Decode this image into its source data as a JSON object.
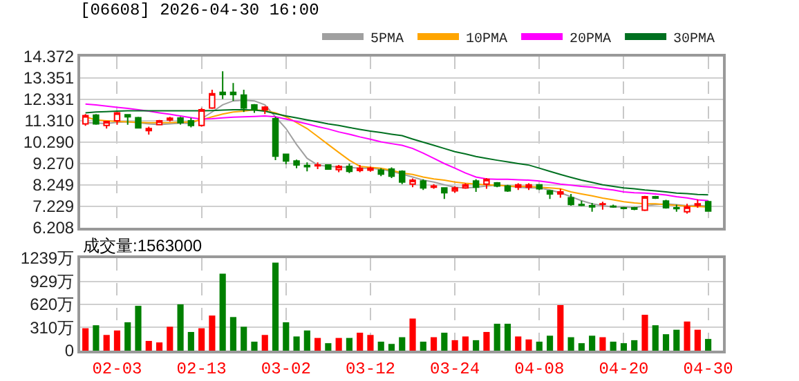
{
  "chart_data": [
    {
      "type": "candlestick",
      "title": "[06608] 2026-04-30 16:00",
      "categories": [
        null,
        null,
        null,
        null,
        null,
        null,
        null,
        null,
        null,
        null,
        null,
        null,
        null,
        null,
        null,
        null,
        null,
        null,
        null,
        null,
        null,
        null,
        null,
        null,
        null,
        null,
        null,
        null,
        null,
        null,
        null,
        null,
        null,
        null,
        null,
        null,
        null,
        null,
        null,
        null,
        null,
        null,
        null,
        null,
        null,
        null,
        null,
        null,
        null,
        null,
        null,
        null,
        null,
        null,
        null,
        null,
        null,
        null,
        null,
        null
      ],
      "ohlc": [
        [
          11.16,
          11.63,
          11.07,
          11.56
        ],
        [
          11.58,
          11.63,
          11.12,
          11.16
        ],
        [
          11.09,
          11.31,
          10.94,
          11.28
        ],
        [
          11.31,
          11.73,
          11.12,
          11.69
        ],
        [
          11.6,
          11.63,
          11.12,
          11.5
        ],
        [
          11.46,
          11.5,
          10.94,
          10.97
        ],
        [
          10.84,
          11.03,
          10.65,
          10.94
        ],
        [
          11.13,
          11.35,
          11.1,
          11.31
        ],
        [
          11.35,
          11.5,
          11.27,
          11.43
        ],
        [
          11.44,
          11.5,
          11.13,
          11.22
        ],
        [
          11.31,
          11.45,
          11.0,
          11.09
        ],
        [
          11.09,
          11.92,
          11.03,
          11.84
        ],
        [
          11.92,
          12.79,
          11.88,
          12.6
        ],
        [
          12.67,
          13.67,
          12.35,
          12.56
        ],
        [
          12.67,
          13.11,
          12.26,
          12.56
        ],
        [
          12.54,
          12.79,
          11.73,
          11.92
        ],
        [
          12.07,
          12.11,
          11.69,
          11.84
        ],
        [
          11.84,
          12.01,
          11.63,
          11.96
        ],
        [
          11.41,
          11.5,
          9.43,
          9.62
        ],
        [
          9.71,
          9.75,
          9.24,
          9.39
        ],
        [
          9.39,
          9.46,
          9.05,
          9.2
        ],
        [
          9.18,
          9.33,
          8.9,
          9.12
        ],
        [
          9.16,
          9.33,
          9.01,
          9.2
        ],
        [
          9.2,
          9.24,
          8.98,
          9.01
        ],
        [
          8.98,
          9.2,
          8.86,
          9.14
        ],
        [
          9.14,
          9.27,
          8.82,
          8.9
        ],
        [
          8.94,
          9.2,
          8.86,
          9.05
        ],
        [
          8.96,
          9.12,
          8.88,
          9.05
        ],
        [
          8.96,
          9.05,
          8.67,
          8.77
        ],
        [
          9.01,
          9.09,
          8.58,
          8.67
        ],
        [
          8.9,
          8.95,
          8.29,
          8.39
        ],
        [
          8.29,
          8.56,
          8.14,
          8.48
        ],
        [
          8.44,
          8.52,
          8.01,
          8.11
        ],
        [
          8.14,
          8.29,
          8.07,
          8.2
        ],
        [
          8.11,
          8.14,
          7.58,
          7.88
        ],
        [
          7.97,
          8.18,
          7.88,
          8.11
        ],
        [
          8.11,
          8.33,
          8.07,
          8.26
        ],
        [
          8.44,
          8.52,
          7.92,
          8.14
        ],
        [
          8.29,
          8.58,
          8.07,
          8.52
        ],
        [
          8.35,
          8.39,
          8.14,
          8.2
        ],
        [
          8.2,
          8.26,
          7.92,
          7.97
        ],
        [
          8.14,
          8.33,
          8.01,
          8.26
        ],
        [
          8.14,
          8.33,
          8.01,
          8.26
        ],
        [
          8.26,
          8.29,
          8.01,
          8.07
        ],
        [
          7.97,
          8.01,
          7.58,
          7.82
        ],
        [
          7.82,
          8.07,
          7.64,
          7.92
        ],
        [
          7.64,
          7.82,
          7.26,
          7.32
        ],
        [
          7.32,
          7.5,
          7.24,
          7.28
        ],
        [
          7.26,
          7.39,
          6.97,
          7.2
        ],
        [
          7.33,
          7.45,
          7.07,
          7.35
        ],
        [
          7.24,
          7.31,
          7.16,
          7.2
        ],
        [
          7.16,
          7.2,
          7.09,
          7.13
        ],
        [
          7.16,
          7.2,
          7.05,
          7.1
        ],
        [
          7.05,
          7.73,
          7.01,
          7.69
        ],
        [
          7.69,
          7.73,
          7.58,
          7.62
        ],
        [
          7.48,
          7.54,
          7.12,
          7.16
        ],
        [
          7.16,
          7.31,
          6.97,
          7.12
        ],
        [
          6.97,
          7.35,
          6.88,
          7.2
        ],
        [
          7.28,
          7.56,
          7.16,
          7.35
        ],
        [
          7.45,
          7.5,
          6.97,
          7.01
        ]
      ],
      "colors": [
        "#ff0000",
        "#008000",
        "#ff0000",
        "#ff0000",
        "#008000",
        "#008000",
        "#ff0000",
        "#ff0000",
        "#ff0000",
        "#008000",
        "#008000",
        "#ff0000",
        "#ff0000",
        "#008000",
        "#008000",
        "#008000",
        "#008000",
        "#ff0000",
        "#008000",
        "#008000",
        "#008000",
        "#008000",
        "#ff0000",
        "#008000",
        "#ff0000",
        "#008000",
        "#ff0000",
        "#ff0000",
        "#008000",
        "#008000",
        "#008000",
        "#ff0000",
        "#008000",
        "#ff0000",
        "#008000",
        "#ff0000",
        "#ff0000",
        "#008000",
        "#ff0000",
        "#008000",
        "#008000",
        "#ff0000",
        "#ff0000",
        "#008000",
        "#008000",
        "#ff0000",
        "#008000",
        "#008000",
        "#008000",
        "#ff0000",
        "#008000",
        "#008000",
        "#008000",
        "#ff0000",
        "#008000",
        "#008000",
        "#008000",
        "#ff0000",
        "#ff0000",
        "#008000"
      ],
      "series": [
        {
          "type": "line",
          "name": "5PMA",
          "color": "#a0a0a0",
          "values": [
            11.22,
            11.2,
            11.18,
            11.24,
            11.26,
            11.22,
            11.16,
            11.13,
            11.16,
            11.2,
            11.18,
            11.41,
            11.73,
            12.07,
            12.26,
            12.29,
            12.26,
            12.07,
            11.5,
            10.94,
            10.18,
            9.52,
            9.2,
            9.14,
            9.11,
            9.09,
            9.05,
            9.05,
            9.0,
            8.9,
            8.77,
            8.63,
            8.48,
            8.39,
            8.26,
            8.14,
            8.11,
            8.14,
            8.2,
            8.24,
            8.2,
            8.14,
            8.11,
            8.11,
            8.01,
            7.88,
            7.69,
            7.5,
            7.35,
            7.26,
            7.2,
            7.2,
            7.16,
            7.26,
            7.31,
            7.35,
            7.31,
            7.26,
            7.28,
            7.24
          ]
        },
        {
          "type": "line",
          "name": "10PMA",
          "color": "#ffa500",
          "values": [
            11.5,
            11.35,
            11.31,
            11.28,
            11.26,
            11.24,
            11.22,
            11.22,
            11.22,
            11.24,
            11.26,
            11.35,
            11.5,
            11.63,
            11.73,
            11.77,
            11.84,
            11.79,
            11.69,
            11.5,
            11.22,
            10.94,
            10.56,
            10.18,
            9.8,
            9.43,
            9.14,
            9.09,
            9.05,
            8.95,
            8.82,
            8.75,
            8.63,
            8.54,
            8.48,
            8.39,
            8.33,
            8.29,
            8.26,
            8.24,
            8.2,
            8.18,
            8.18,
            8.14,
            8.11,
            8.07,
            7.92,
            7.82,
            7.73,
            7.62,
            7.54,
            7.45,
            7.39,
            7.35,
            7.35,
            7.31,
            7.28,
            7.24,
            7.22,
            7.2
          ]
        },
        {
          "type": "line",
          "name": "20PMA",
          "color": "#ff00ff",
          "values": [
            12.11,
            12.07,
            12.01,
            11.95,
            11.9,
            11.84,
            11.77,
            11.69,
            11.62,
            11.54,
            11.46,
            11.39,
            11.41,
            11.45,
            11.48,
            11.5,
            11.52,
            11.54,
            11.5,
            11.39,
            11.28,
            11.16,
            11.03,
            10.92,
            10.78,
            10.67,
            10.54,
            10.43,
            10.31,
            10.22,
            10.14,
            9.99,
            9.77,
            9.52,
            9.27,
            9.05,
            8.82,
            8.63,
            8.54,
            8.52,
            8.52,
            8.5,
            8.48,
            8.44,
            8.37,
            8.29,
            8.24,
            8.18,
            8.14,
            8.07,
            8.01,
            7.92,
            7.88,
            7.86,
            7.82,
            7.77,
            7.69,
            7.63,
            7.54,
            7.5
          ]
        },
        {
          "type": "line",
          "name": "30PMA",
          "color": "#007020",
          "values": [
            11.69,
            11.73,
            11.75,
            11.77,
            11.79,
            11.79,
            11.79,
            11.79,
            11.79,
            11.79,
            11.79,
            11.79,
            11.8,
            11.82,
            11.84,
            11.84,
            11.82,
            11.77,
            11.65,
            11.54,
            11.45,
            11.35,
            11.26,
            11.16,
            11.09,
            10.99,
            10.9,
            10.82,
            10.75,
            10.67,
            10.6,
            10.44,
            10.29,
            10.14,
            9.99,
            9.84,
            9.73,
            9.61,
            9.52,
            9.43,
            9.35,
            9.27,
            9.2,
            9.05,
            8.9,
            8.75,
            8.61,
            8.48,
            8.37,
            8.26,
            8.18,
            8.11,
            8.07,
            8.01,
            7.97,
            7.92,
            7.86,
            7.84,
            7.8,
            7.78
          ]
        }
      ],
      "ylim": [
        6.208,
        14.372
      ],
      "yticks": [
        6.208,
        7.229,
        8.249,
        {
          "value": 9.27,
          "label": "9.270"
        },
        {
          "value": 10.29,
          "label": "10.290"
        },
        {
          "value": 11.31,
          "label": "11.310"
        },
        12.331,
        13.351,
        14.372
      ],
      "grid": true,
      "legend": "top right",
      "tick_labels": "y"
    },
    {
      "type": "bar",
      "annotations": [
        "成交量:1563000"
      ],
      "categories": [
        null,
        null,
        null,
        "02-03",
        null,
        null,
        null,
        null,
        null,
        null,
        null,
        "02-13",
        null,
        null,
        null,
        null,
        null,
        null,
        null,
        "03-02",
        null,
        null,
        null,
        null,
        null,
        null,
        null,
        "03-12",
        null,
        null,
        null,
        null,
        null,
        null,
        null,
        "03-24",
        null,
        null,
        null,
        null,
        null,
        null,
        null,
        "04-08",
        null,
        null,
        null,
        null,
        null,
        null,
        null,
        "04-20",
        null,
        null,
        null,
        null,
        null,
        null,
        null,
        "04-30"
      ],
      "values": [
        300,
        340,
        210,
        270,
        380,
        600,
        130,
        110,
        320,
        620,
        250,
        300,
        470,
        1030,
        450,
        320,
        120,
        210,
        1180,
        380,
        190,
        270,
        170,
        100,
        170,
        170,
        240,
        210,
        120,
        90,
        180,
        430,
        120,
        180,
        240,
        140,
        190,
        140,
        250,
        360,
        360,
        190,
        150,
        120,
        200,
        610,
        180,
        100,
        200,
        180,
        120,
        100,
        140,
        480,
        340,
        220,
        280,
        390,
        280,
        156.3
      ],
      "colors": [
        "#ff0000",
        "#008000",
        "#ff0000",
        "#ff0000",
        "#008000",
        "#008000",
        "#ff0000",
        "#ff0000",
        "#ff0000",
        "#008000",
        "#008000",
        "#ff0000",
        "#ff0000",
        "#008000",
        "#008000",
        "#008000",
        "#008000",
        "#ff0000",
        "#008000",
        "#008000",
        "#008000",
        "#008000",
        "#ff0000",
        "#008000",
        "#ff0000",
        "#008000",
        "#ff0000",
        "#ff0000",
        "#008000",
        "#008000",
        "#008000",
        "#ff0000",
        "#008000",
        "#ff0000",
        "#008000",
        "#ff0000",
        "#ff0000",
        "#008000",
        "#ff0000",
        "#008000",
        "#008000",
        "#ff0000",
        "#ff0000",
        "#008000",
        "#008000",
        "#ff0000",
        "#008000",
        "#008000",
        "#008000",
        "#ff0000",
        "#008000",
        "#008000",
        "#008000",
        "#ff0000",
        "#008000",
        "#008000",
        "#008000",
        "#ff0000",
        "#ff0000",
        "#008000"
      ],
      "ylim": [
        0,
        1239
      ],
      "yticks": [
        0,
        {
          "value": 310,
          "label": "310万"
        },
        {
          "value": 620,
          "label": "620万"
        },
        {
          "value": 929,
          "label": "929万"
        },
        {
          "value": 1239,
          "label": "1239万"
        }
      ],
      "grid": true
    }
  ]
}
